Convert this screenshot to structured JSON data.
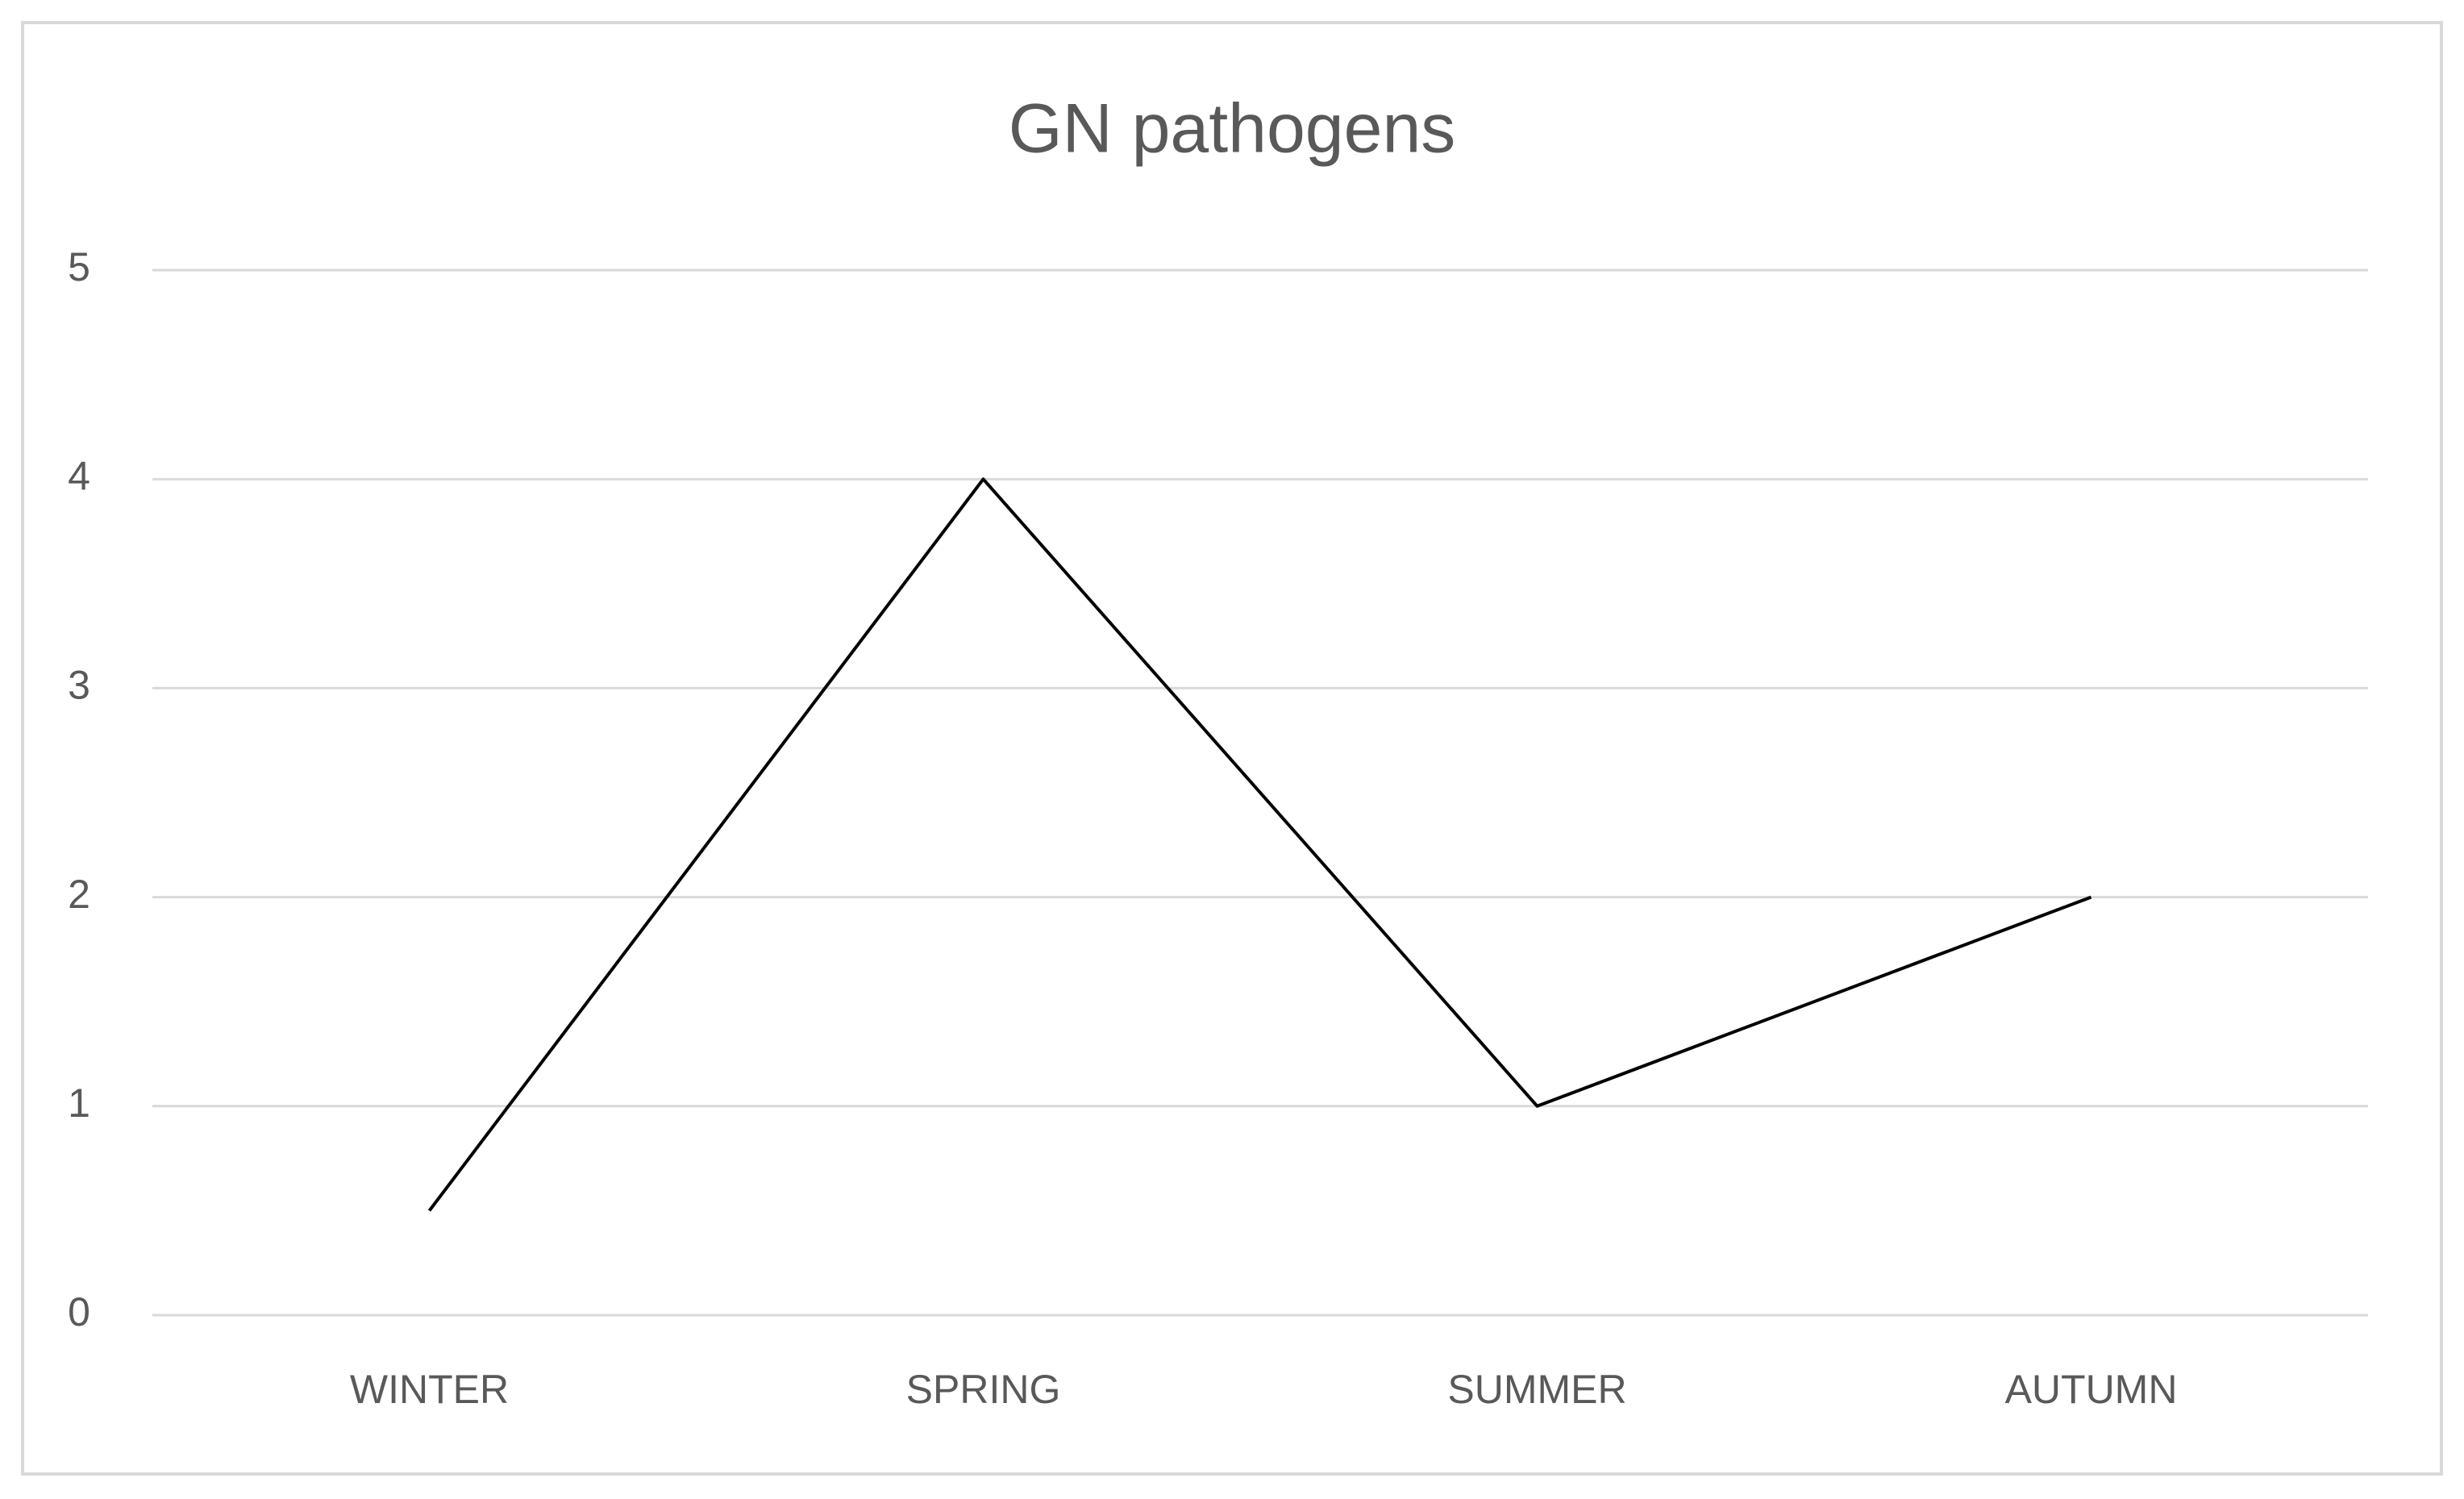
{
  "chart_data": {
    "type": "line",
    "title": "GN pathogens",
    "categories": [
      "WINTER",
      "SPRING",
      "SUMMER",
      "AUTUMN"
    ],
    "values": [
      0.5,
      4,
      1,
      2
    ],
    "color": "#000000",
    "ylim": [
      0,
      5
    ],
    "yticks": [
      0,
      1,
      2,
      3,
      4,
      5
    ],
    "grid": true
  }
}
